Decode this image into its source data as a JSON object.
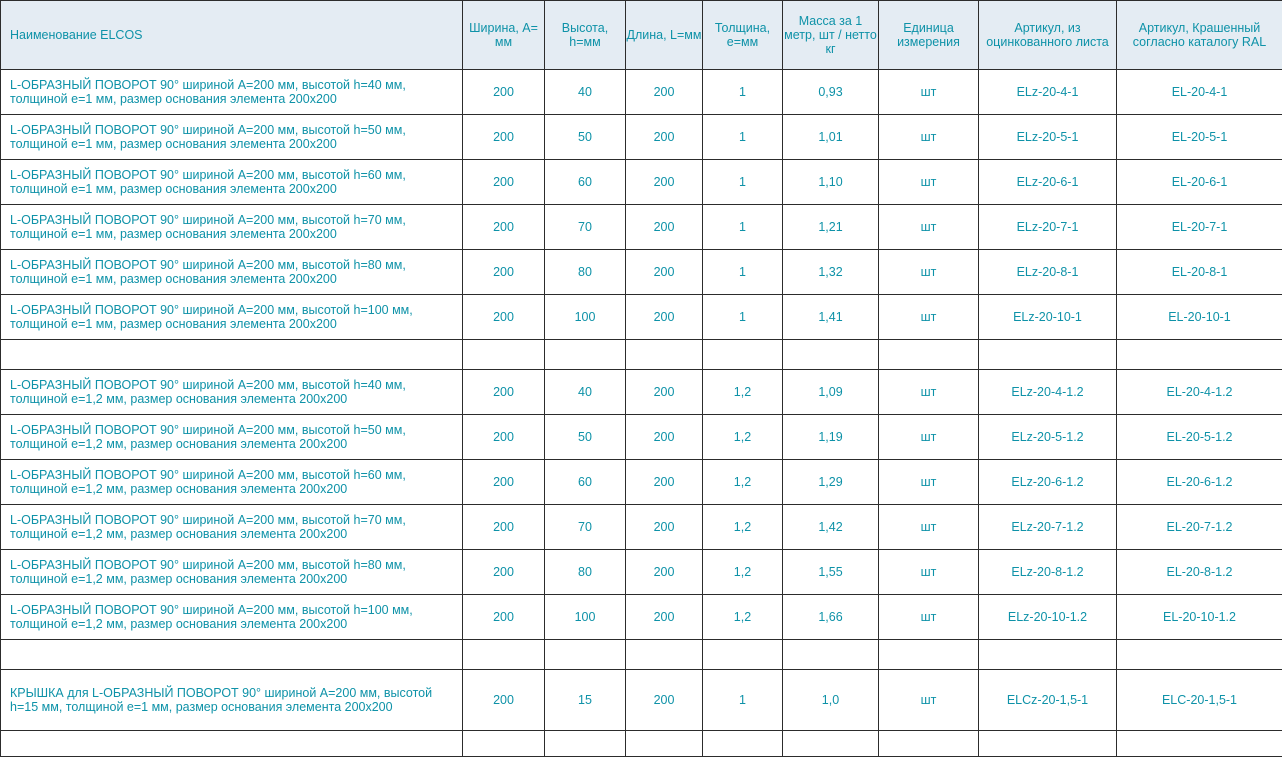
{
  "headers": {
    "name": "Наименование ELCOS",
    "width": "Ширина, А= мм",
    "height": "Высота, h=мм",
    "length": "Длина, L=мм",
    "thickness": "Толщина, е=мм",
    "mass": "Масса за 1 метр, шт / нетто кг",
    "unit": "Единица измерения",
    "sku_galv": "Артикул, из оцинкованного листа",
    "sku_painted": "Артикул, Крашенный согласно каталогу RAL"
  },
  "rows": [
    {
      "name": "L-ОБРАЗНЫЙ ПОВОРОТ 90° шириной А=200 мм, высотой h=40 мм, толщиной е=1 мм, размер основания элемента 200х200",
      "width": "200",
      "height": "40",
      "length": "200",
      "thickness": "1",
      "mass": "0,93",
      "unit": "шт",
      "sku_galv": "ELz-20-4-1",
      "sku_painted": "EL-20-4-1"
    },
    {
      "name": "L-ОБРАЗНЫЙ ПОВОРОТ 90° шириной А=200 мм, высотой h=50 мм, толщиной е=1 мм, размер основания элемента 200х200",
      "width": "200",
      "height": "50",
      "length": "200",
      "thickness": "1",
      "mass": "1,01",
      "unit": "шт",
      "sku_galv": "ELz-20-5-1",
      "sku_painted": "EL-20-5-1"
    },
    {
      "name": "L-ОБРАЗНЫЙ ПОВОРОТ 90° шириной А=200 мм, высотой h=60 мм, толщиной е=1 мм, размер основания элемента 200х200",
      "width": "200",
      "height": "60",
      "length": "200",
      "thickness": "1",
      "mass": "1,10",
      "unit": "шт",
      "sku_galv": "ELz-20-6-1",
      "sku_painted": "EL-20-6-1"
    },
    {
      "name": "L-ОБРАЗНЫЙ ПОВОРОТ 90° шириной А=200 мм, высотой h=70 мм, толщиной е=1 мм, размер основания элемента 200х200",
      "width": "200",
      "height": "70",
      "length": "200",
      "thickness": "1",
      "mass": "1,21",
      "unit": "шт",
      "sku_galv": "ELz-20-7-1",
      "sku_painted": "EL-20-7-1"
    },
    {
      "name": "L-ОБРАЗНЫЙ ПОВОРОТ 90° шириной А=200 мм, высотой h=80 мм, толщиной е=1 мм, размер основания элемента 200х200",
      "width": "200",
      "height": "80",
      "length": "200",
      "thickness": "1",
      "mass": "1,32",
      "unit": "шт",
      "sku_galv": "ELz-20-8-1",
      "sku_painted": "EL-20-8-1"
    },
    {
      "name": "L-ОБРАЗНЫЙ ПОВОРОТ 90° шириной А=200 мм, высотой h=100 мм, толщиной е=1 мм, размер основания элемента 200х200",
      "width": "200",
      "height": "100",
      "length": "200",
      "thickness": "1",
      "mass": "1,41",
      "unit": "шт",
      "sku_galv": "ELz-20-10-1",
      "sku_painted": "EL-20-10-1"
    },
    {
      "name": "L-ОБРАЗНЫЙ ПОВОРОТ 90° шириной А=200 мм, высотой h=40 мм, толщиной е=1,2 мм, размер основания элемента 200х200",
      "width": "200",
      "height": "40",
      "length": "200",
      "thickness": "1,2",
      "mass": "1,09",
      "unit": "шт",
      "sku_galv": "ELz-20-4-1.2",
      "sku_painted": "EL-20-4-1.2"
    },
    {
      "name": "L-ОБРАЗНЫЙ ПОВОРОТ 90° шириной А=200 мм, высотой h=50 мм, толщиной е=1,2 мм, размер основания элемента 200х200",
      "width": "200",
      "height": "50",
      "length": "200",
      "thickness": "1,2",
      "mass": "1,19",
      "unit": "шт",
      "sku_galv": "ELz-20-5-1.2",
      "sku_painted": "EL-20-5-1.2"
    },
    {
      "name": "L-ОБРАЗНЫЙ ПОВОРОТ 90° шириной А=200 мм, высотой h=60 мм, толщиной е=1,2 мм, размер основания элемента 200х200",
      "width": "200",
      "height": "60",
      "length": "200",
      "thickness": "1,2",
      "mass": "1,29",
      "unit": "шт",
      "sku_galv": "ELz-20-6-1.2",
      "sku_painted": "EL-20-6-1.2"
    },
    {
      "name": "L-ОБРАЗНЫЙ ПОВОРОТ 90° шириной А=200 мм, высотой h=70 мм, толщиной е=1,2 мм, размер основания элемента 200х200",
      "width": "200",
      "height": "70",
      "length": "200",
      "thickness": "1,2",
      "mass": "1,42",
      "unit": "шт",
      "sku_galv": "ELz-20-7-1.2",
      "sku_painted": "EL-20-7-1.2"
    },
    {
      "name": "L-ОБРАЗНЫЙ ПОВОРОТ 90° шириной А=200 мм, высотой h=80 мм, толщиной е=1,2 мм, размер основания элемента 200х200",
      "width": "200",
      "height": "80",
      "length": "200",
      "thickness": "1,2",
      "mass": "1,55",
      "unit": "шт",
      "sku_galv": "ELz-20-8-1.2",
      "sku_painted": "EL-20-8-1.2"
    },
    {
      "name": "L-ОБРАЗНЫЙ ПОВОРОТ 90° шириной А=200 мм, высотой h=100 мм, толщиной е=1,2 мм, размер основания элемента 200х200",
      "width": "200",
      "height": "100",
      "length": "200",
      "thickness": "1,2",
      "mass": "1,66",
      "unit": "шт",
      "sku_galv": "ELz-20-10-1.2",
      "sku_painted": "EL-20-10-1.2"
    },
    {
      "name": "КРЫШКА для L-ОБРАЗНЫЙ ПОВОРОТ 90° шириной А=200 мм, высотой h=15 мм, толщиной е=1 мм, размер основания элемента 200х200",
      "width": "200",
      "height": "15",
      "length": "200",
      "thickness": "1",
      "mass": "1,0",
      "unit": "шт",
      "sku_galv": "ELCz-20-1,5-1",
      "sku_painted": "ELC-20-1,5-1"
    }
  ],
  "colors": {
    "text": "#0e92a8",
    "header_bg": "#e4ecf3",
    "border": "#2c2c2c"
  }
}
